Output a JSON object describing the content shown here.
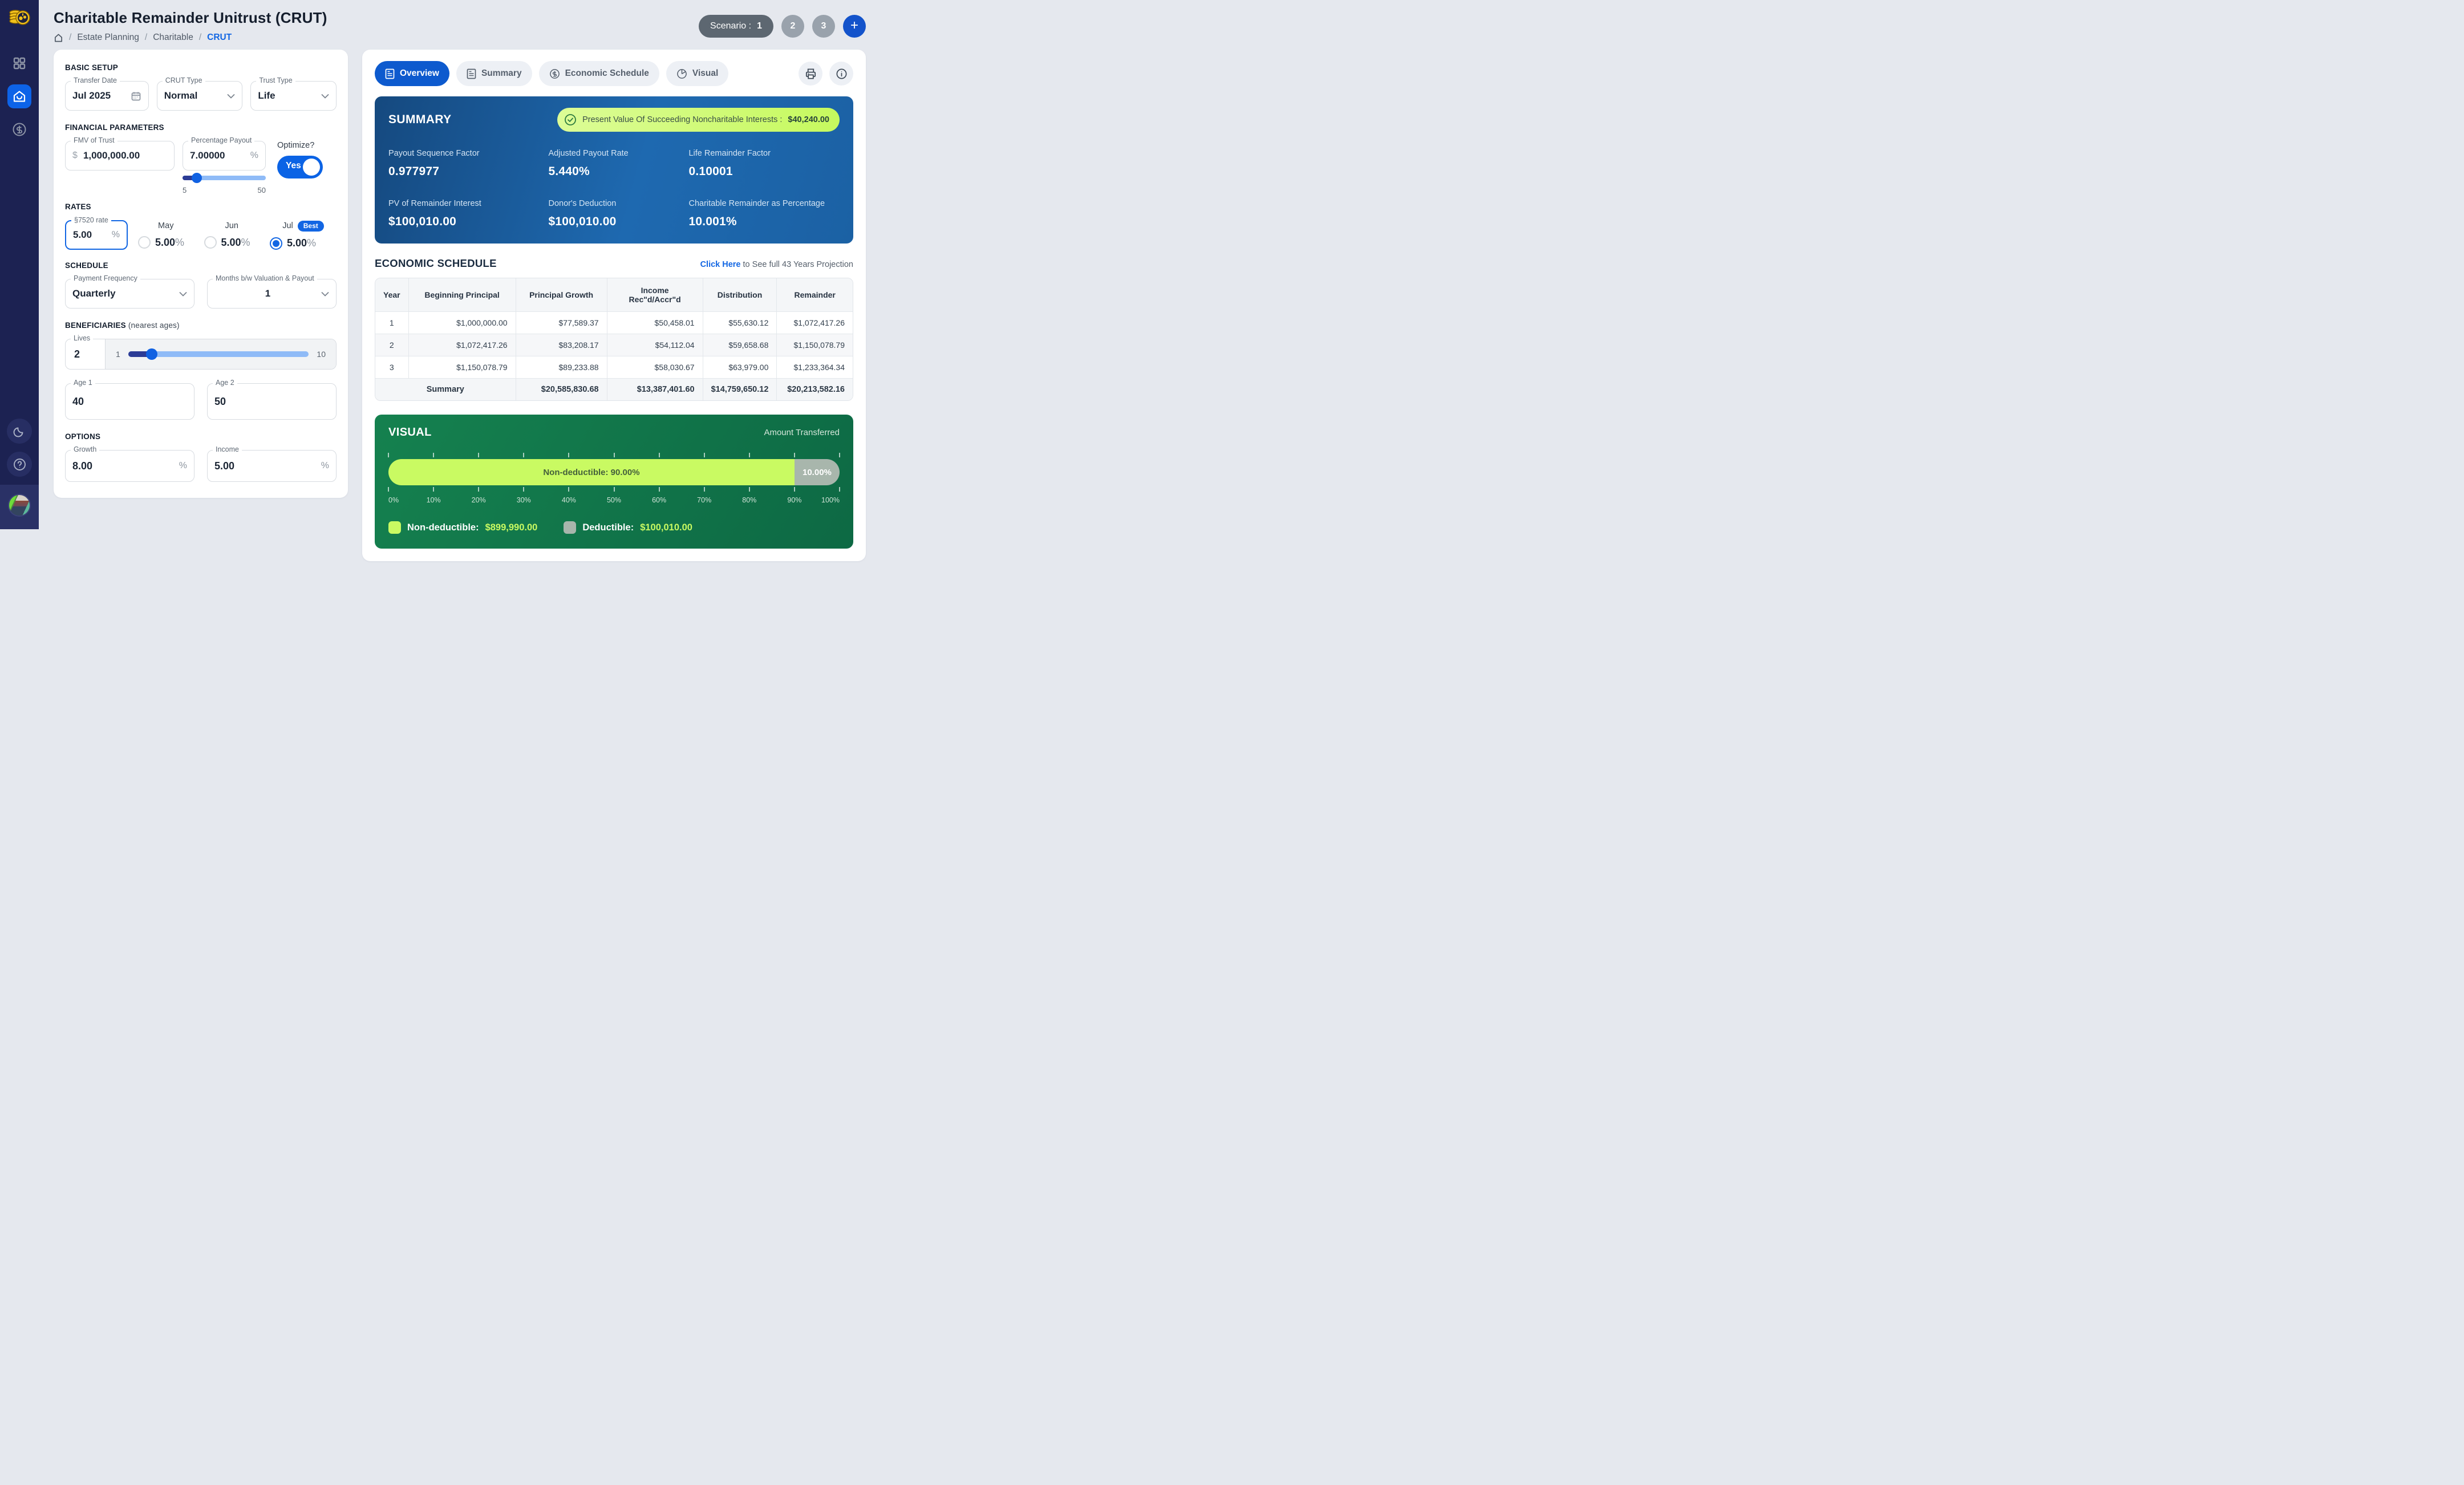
{
  "header": {
    "title": "Charitable Remainder Unitrust (CRUT)",
    "breadcrumb": {
      "item1": "Estate Planning",
      "item2": "Charitable",
      "item3": "CRUT",
      "sep": "/"
    },
    "scenario": {
      "label": "Scenario :",
      "current": "1",
      "other1": "2",
      "other2": "3",
      "add": "+"
    }
  },
  "form": {
    "basic_setup": {
      "heading": "BASIC SETUP",
      "transfer_date": {
        "label": "Transfer Date",
        "value": "Jul 2025"
      },
      "crut_type": {
        "label": "CRUT Type",
        "value": "Normal"
      },
      "trust_type": {
        "label": "Trust Type",
        "value": "Life"
      }
    },
    "financial": {
      "heading": "FINANCIAL PARAMETERS",
      "fmv": {
        "label": "FMV of Trust",
        "prefix": "$",
        "value": "1,000,000.00"
      },
      "payout": {
        "label": "Percentage Payout",
        "value": "7.00000",
        "suffix": "%",
        "min": "5",
        "max": "50"
      },
      "optimize": {
        "label": "Optimize?",
        "value": "Yes"
      }
    },
    "rates": {
      "heading": "RATES",
      "rate7520": {
        "label": "§7520 rate",
        "value": "5.00",
        "suffix": "%"
      },
      "options": [
        {
          "label": "May",
          "value": "5.00",
          "pct": "%",
          "selected": false
        },
        {
          "label": "Jun",
          "value": "5.00",
          "pct": "%",
          "selected": false
        },
        {
          "label": "Jul",
          "value": "5.00",
          "pct": "%",
          "selected": true,
          "badge": "Best"
        }
      ]
    },
    "schedule": {
      "heading": "SCHEDULE",
      "payment_frequency": {
        "label": "Payment Frequency",
        "value": "Quarterly"
      },
      "months": {
        "label": "Months b/w Valuation & Payout",
        "value": "1"
      }
    },
    "beneficiaries": {
      "heading": "BENEFICIARIES",
      "heading_note": "(nearest ages)",
      "lives": {
        "label": "Lives",
        "value": "2",
        "min": "1",
        "max": "10"
      },
      "age1": {
        "label": "Age 1",
        "value": "40"
      },
      "age2": {
        "label": "Age 2",
        "value": "50"
      }
    },
    "options": {
      "heading": "OPTIONS",
      "growth": {
        "label": "Growth",
        "value": "8.00",
        "suffix": "%"
      },
      "income": {
        "label": "Income",
        "value": "5.00",
        "suffix": "%"
      }
    }
  },
  "tabs": {
    "overview": "Overview",
    "summary": "Summary",
    "economic_schedule": "Economic Schedule",
    "visual": "Visual"
  },
  "summary_card": {
    "title": "SUMMARY",
    "banner": {
      "text": "Present Value Of Succeeding Noncharitable Interests :",
      "value": "$40,240.00"
    },
    "stats": [
      {
        "label": "Payout Sequence Factor",
        "value": "0.977977"
      },
      {
        "label": "Adjusted Payout Rate",
        "value": "5.440%"
      },
      {
        "label": "Life Remainder Factor",
        "value": "0.10001"
      },
      {
        "label": "PV of Remainder Interest",
        "value": "$100,010.00"
      },
      {
        "label": "Donor's Deduction",
        "value": "$100,010.00"
      },
      {
        "label": "Charitable Remainder as Percentage",
        "value": "10.001%"
      }
    ]
  },
  "economic_schedule": {
    "title": "ECONOMIC SCHEDULE",
    "link_text": "Click Here",
    "link_suffix": " to See full 43 Years Projection",
    "columns": [
      "Year",
      "Beginning Principal",
      "Principal Growth",
      "Income Rec\"d/Accr\"d",
      "Distribution",
      "Remainder"
    ],
    "rows": [
      [
        "1",
        "$1,000,000.00",
        "$77,589.37",
        "$50,458.01",
        "$55,630.12",
        "$1,072,417.26"
      ],
      [
        "2",
        "$1,072,417.26",
        "$83,208.17",
        "$54,112.04",
        "$59,658.68",
        "$1,150,078.79"
      ],
      [
        "3",
        "$1,150,078.79",
        "$89,233.88",
        "$58,030.67",
        "$63,979.00",
        "$1,233,364.34"
      ]
    ],
    "summary_row": {
      "label": "Summary",
      "values": [
        "$20,585,830.68",
        "$13,387,401.60",
        "$14,759,650.12",
        "$20,213,582.16"
      ]
    }
  },
  "visual_card": {
    "title": "VISUAL",
    "subtitle": "Amount Transferred",
    "legend": [
      {
        "label": "Non-deductible:",
        "amount": "$899,990.00",
        "color": "#c9fa62"
      },
      {
        "label": "Deductible:",
        "amount": "$100,010.00",
        "color": "#a8b6ac"
      }
    ]
  },
  "chart_data": {
    "type": "bar",
    "orientation": "horizontal-stacked",
    "title": "Amount Transferred",
    "segments": [
      {
        "label": "Non-deductible",
        "percent": 90.0,
        "amount": 899990.0,
        "bar_label": "Non-deductible: 90.00%",
        "color": "#c9fa62"
      },
      {
        "label": "Deductible",
        "percent": 10.0,
        "amount": 100010.0,
        "bar_label": "10.00%",
        "color": "#a8b6ac"
      }
    ],
    "x_ticks": [
      "0%",
      "10%",
      "20%",
      "30%",
      "40%",
      "50%",
      "60%",
      "70%",
      "80%",
      "90%",
      "100%"
    ],
    "xlim": [
      0,
      100
    ],
    "legend_position": "bottom"
  },
  "colors": {
    "accent_blue": "#1266e3",
    "sidebar_navy": "#1c2252",
    "summary_gradient_start": "#15497f",
    "summary_gradient_end": "#1e69b0",
    "visual_green": "#0d6944",
    "lime": "#c9fa62",
    "gray_segment": "#a8b6ac"
  }
}
